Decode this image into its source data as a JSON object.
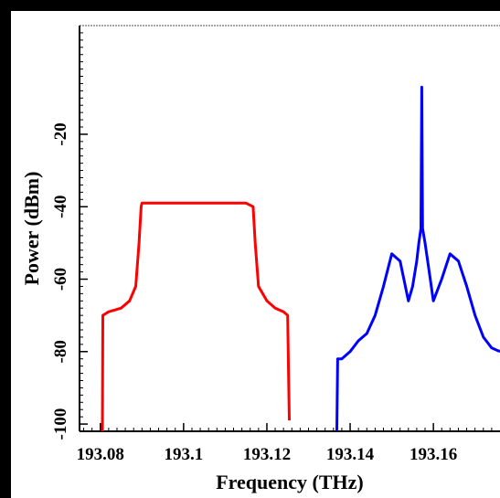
{
  "chart_data": {
    "type": "line",
    "xlabel": "Frequency (THz)",
    "ylabel": "Power (dBm)",
    "xlim": [
      193.075,
      193.176
    ],
    "ylim": [
      -102,
      10
    ],
    "x_ticks": [
      193.08,
      193.1,
      193.12,
      193.14,
      193.16
    ],
    "x_tick_labels": [
      "193.08",
      "193.1",
      "193.12",
      "193.14",
      "193.16"
    ],
    "y_ticks": [
      -20,
      -40,
      -60,
      -80,
      -100
    ],
    "y_tick_labels": [
      "-20",
      "-40",
      "-60",
      "-80",
      "-100"
    ],
    "grid": false,
    "series": [
      {
        "color": "#ff0000",
        "x": [
          193.0805,
          193.0806,
          193.082,
          193.085,
          193.087,
          193.0885,
          193.0893,
          193.0898,
          193.09,
          193.095,
          193.1,
          193.105,
          193.11,
          193.115,
          193.1167,
          193.1172,
          193.118,
          193.12,
          193.122,
          193.124,
          193.125,
          193.1252,
          193.1254
        ],
        "y": [
          -102,
          -70,
          -69,
          -68,
          -66,
          -62,
          -50,
          -40,
          -39,
          -39,
          -39,
          -39,
          -39,
          -39,
          -40,
          -50,
          -62,
          -66,
          -68,
          -69,
          -70,
          -85,
          -99
        ]
      },
      {
        "color": "#0000ff",
        "x": [
          193.1368,
          193.137,
          193.138,
          193.14,
          193.142,
          193.144,
          193.146,
          193.148,
          193.15,
          193.152,
          193.154,
          193.155,
          193.156,
          193.1565,
          193.157,
          193.1572,
          193.1574,
          193.158,
          193.159,
          193.16,
          193.162,
          193.164,
          193.166,
          193.168,
          193.17,
          193.172,
          193.174,
          193.176
        ],
        "y": [
          -102,
          -82,
          -82,
          -80,
          -77,
          -75,
          -70,
          -62,
          -53,
          -55,
          -66,
          -62,
          -55,
          -50,
          -46,
          -7,
          -46,
          -50,
          -58,
          -66,
          -60,
          -53,
          -55,
          -62,
          -70,
          -76,
          -79,
          -80
        ]
      }
    ]
  }
}
